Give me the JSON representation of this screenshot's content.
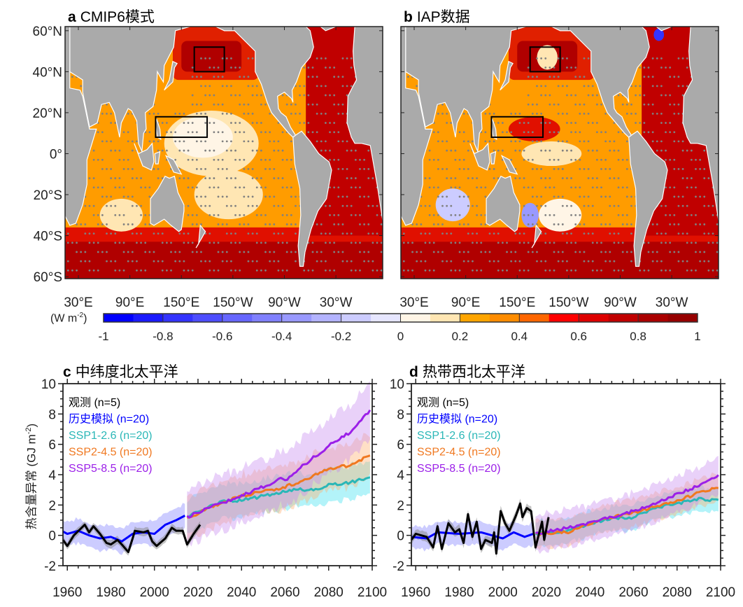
{
  "panel_a": {
    "letter": "a",
    "title": "CMIP6模式"
  },
  "panel_b": {
    "letter": "b",
    "title": "IAP数据"
  },
  "map": {
    "lat_ticks": [
      "60°N",
      "40°N",
      "20°N",
      "0°",
      "20°S",
      "40°S",
      "60°S"
    ],
    "lat_values": [
      60,
      40,
      20,
      0,
      -20,
      -40,
      -60
    ],
    "lon_ticks": [
      "30°E",
      "90°E",
      "150°E",
      "150°W",
      "90°W",
      "30°W"
    ],
    "lon_values": [
      30,
      90,
      150,
      210,
      270,
      330
    ],
    "boxes": [
      {
        "lon": [
          165,
          200
        ],
        "lat": [
          40,
          52
        ]
      },
      {
        "lon": [
          120,
          180
        ],
        "lat": [
          8,
          18
        ]
      }
    ],
    "land_color": "#aaaaaa",
    "stipple_color": "#808080"
  },
  "colorbar": {
    "unit": "(W m",
    "unit_sup": "-2",
    "unit_close": ")",
    "tick_labels": [
      "-1",
      "-0.8",
      "-0.6",
      "-0.4",
      "-0.2",
      "0",
      "0.2",
      "0.4",
      "0.6",
      "0.8",
      "1"
    ],
    "colors": [
      "#0000ff",
      "#1a1aff",
      "#3333ff",
      "#4d4dff",
      "#6666ff",
      "#8080ff",
      "#9999ff",
      "#b3b3ff",
      "#ccccff",
      "#e6e6ff",
      "#fff5e6",
      "#ffe6b3",
      "#ffa500",
      "#ff8c00",
      "#ff6600",
      "#ff0000",
      "#dd0000",
      "#c00000",
      "#aa0000",
      "#960000"
    ]
  },
  "chart_data": [
    {
      "type": "line",
      "letter": "c",
      "title": "中纬度北太平洋",
      "ylabel": "热含量异常 (GJ m",
      "ylabel_sup": "-2",
      "ylabel_close": ")",
      "xlim": [
        1958,
        2100
      ],
      "ylim": [
        -2,
        10
      ],
      "xticks": [
        1960,
        1980,
        2000,
        2020,
        2040,
        2060,
        2080,
        2100
      ],
      "yticks": [
        -2,
        0,
        2,
        4,
        6,
        8,
        10
      ],
      "legend_placement": "top-left",
      "series": [
        {
          "name": "观测 (n=5)",
          "color": "#000000",
          "spread": 0.25,
          "x": [
            1958,
            1960,
            1963,
            1968,
            1970,
            1972,
            1975,
            1978,
            1980,
            1983,
            1985,
            1988,
            1990,
            1991,
            1995,
            1997,
            1999,
            2001,
            2005,
            2008,
            2010,
            2013,
            2015,
            2018,
            2021
          ],
          "y": [
            -0.3,
            -0.7,
            0.0,
            0.7,
            0.2,
            0.6,
            0.1,
            -0.5,
            -0.6,
            -0.3,
            -0.6,
            -1.1,
            -0.2,
            0.3,
            0.2,
            0.3,
            -0.4,
            -0.7,
            -0.2,
            0.5,
            0.3,
            0.3,
            -0.6,
            0.1,
            0.7
          ]
        },
        {
          "name": "历史模拟 (n=20)",
          "color": "#0000ff",
          "band": "#8080ff",
          "spread": 0.8,
          "x": [
            1958,
            1960,
            1965,
            1970,
            1975,
            1980,
            1985,
            1990,
            1995,
            2000,
            2005,
            2010,
            2014
          ],
          "y": [
            0.25,
            0.1,
            0.3,
            0.0,
            -0.2,
            -0.1,
            -0.4,
            0.1,
            0.2,
            0.1,
            0.7,
            1.0,
            1.3
          ]
        },
        {
          "name": "SSP1-2.6 (n=20)",
          "color": "#2ab7b7",
          "band": "#40e0f0",
          "spread": 1.1,
          "x": [
            2015,
            2030,
            2040,
            2050,
            2060,
            2066,
            2070,
            2080,
            2090,
            2099
          ],
          "y": [
            1.2,
            2.2,
            2.3,
            2.6,
            2.9,
            3.1,
            2.9,
            3.3,
            3.5,
            3.8
          ]
        },
        {
          "name": "SSP2-4.5 (n=20)",
          "color": "#f07820",
          "band": "#ffb070",
          "spread": 1.4,
          "x": [
            2015,
            2030,
            2040,
            2050,
            2060,
            2070,
            2080,
            2090,
            2099
          ],
          "y": [
            1.1,
            2.1,
            2.6,
            2.9,
            3.2,
            3.7,
            4.4,
            4.6,
            5.3
          ]
        },
        {
          "name": "SSP5-8.5 (n=20)",
          "color": "#9b1fe8",
          "band": "#c88cf0",
          "spread": 1.8,
          "x": [
            2015,
            2030,
            2040,
            2050,
            2058,
            2060,
            2070,
            2080,
            2090,
            2099
          ],
          "y": [
            1.2,
            2.1,
            2.6,
            3.2,
            3.7,
            3.6,
            4.8,
            5.9,
            6.8,
            8.2
          ]
        }
      ]
    },
    {
      "type": "line",
      "letter": "d",
      "title": "热带西北太平洋",
      "xlim": [
        1958,
        2100
      ],
      "ylim": [
        -2,
        10
      ],
      "xticks": [
        1960,
        1980,
        2000,
        2020,
        2040,
        2060,
        2080,
        2100
      ],
      "yticks": [
        -2,
        0,
        2,
        4,
        6,
        8,
        10
      ],
      "legend_placement": "top-left",
      "series": [
        {
          "name": "观测 (n=5)",
          "color": "#000000",
          "spread": 0.3,
          "x": [
            1958,
            1960,
            1965,
            1968,
            1970,
            1972,
            1975,
            1978,
            1980,
            1982,
            1984,
            1986,
            1988,
            1990,
            1992,
            1995,
            1996,
            1997,
            1999,
            2001,
            2003,
            2006,
            2008,
            2009,
            2011,
            2013,
            2015,
            2018,
            2019,
            2021
          ],
          "y": [
            -0.3,
            0.1,
            -0.1,
            -0.8,
            0.6,
            -0.9,
            0.8,
            0.2,
            0.4,
            -0.5,
            1.4,
            -0.1,
            0.9,
            -0.9,
            -0.3,
            -0.5,
            0.2,
            -1.2,
            1.6,
            0.8,
            0.3,
            1.3,
            2.1,
            1.2,
            1.8,
            1.6,
            -0.8,
            0.9,
            -0.3,
            1.2
          ]
        },
        {
          "name": "历史模拟 (n=20)",
          "color": "#0000ff",
          "band": "#8080ff",
          "spread": 0.75,
          "x": [
            1958,
            1965,
            1970,
            1980,
            1990,
            1995,
            2000,
            2005,
            2010,
            2014
          ],
          "y": [
            -0.1,
            -0.2,
            0.2,
            0.1,
            0.2,
            0.0,
            -0.2,
            0.2,
            -0.1,
            0.1
          ]
        },
        {
          "name": "SSP1-2.6 (n=20)",
          "color": "#2ab7b7",
          "band": "#40e0f0",
          "spread": 0.8,
          "x": [
            2015,
            2030,
            2040,
            2050,
            2060,
            2070,
            2080,
            2090,
            2099
          ],
          "y": [
            0.1,
            0.3,
            0.8,
            1.1,
            1.2,
            1.8,
            2.1,
            2.4,
            2.3
          ]
        },
        {
          "name": "SSP2-4.5 (n=20)",
          "color": "#f07820",
          "band": "#ffb070",
          "spread": 0.9,
          "x": [
            2015,
            2030,
            2040,
            2050,
            2060,
            2070,
            2080,
            2090,
            2099
          ],
          "y": [
            0.1,
            0.2,
            0.8,
            1.2,
            1.5,
            1.9,
            2.3,
            2.8,
            3.2
          ]
        },
        {
          "name": "SSP5-8.5 (n=20)",
          "color": "#9b1fe8",
          "band": "#c88cf0",
          "spread": 1.2,
          "x": [
            2015,
            2030,
            2040,
            2050,
            2060,
            2070,
            2080,
            2090,
            2099
          ],
          "y": [
            0.1,
            0.5,
            0.8,
            1.2,
            1.6,
            2.1,
            2.7,
            3.3,
            4.0
          ]
        }
      ]
    }
  ]
}
